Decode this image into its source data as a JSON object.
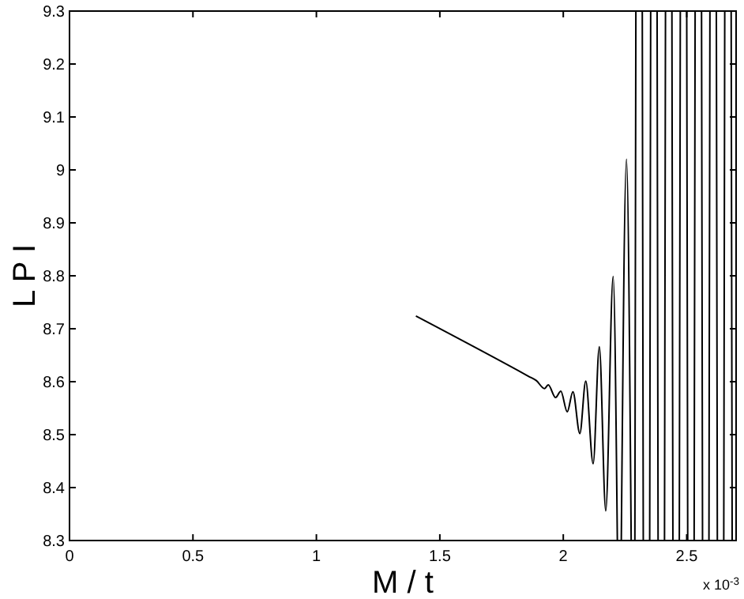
{
  "chart_data": {
    "type": "line",
    "xlabel": "M / t",
    "ylabel": "L P I",
    "annotations": [
      "x 10$^{-3}$"
    ],
    "xlim": [
      0,
      2.7
    ],
    "ylim": [
      8.3,
      9.3
    ],
    "xticks": [
      0,
      0.5,
      1,
      1.5,
      2,
      2.5
    ],
    "yticks": [
      8.3,
      8.4,
      8.5,
      8.6,
      8.7,
      8.8,
      8.9,
      9,
      9.1,
      9.2,
      9.3
    ],
    "grid": false,
    "line_style": "solid",
    "marker": "none",
    "series": [
      {
        "color": "#000000",
        "x": [
          1.403,
          1.86,
          1.891,
          1.924,
          1.939,
          1.969,
          1.99,
          2.016,
          2.039,
          2.067,
          2.091,
          2.121,
          2.146,
          2.172,
          2.202,
          2.219,
          2.225,
          2.235,
          2.256,
          2.275,
          2.28,
          2.29,
          2.294,
          2.297,
          2.32,
          2.324,
          2.327,
          2.35,
          2.354,
          2.357,
          2.38,
          2.384,
          2.387,
          2.41,
          2.414,
          2.417,
          2.44,
          2.444,
          2.447,
          2.47,
          2.474,
          2.477,
          2.5,
          2.504,
          2.507,
          2.53,
          2.534,
          2.537,
          2.56,
          2.564,
          2.567,
          2.59,
          2.594,
          2.597,
          2.62,
          2.624,
          2.627,
          2.65,
          2.654,
          2.657,
          2.68,
          2.684
        ],
        "values": [
          8.724,
          8.61,
          8.602,
          8.587,
          8.594,
          8.57,
          8.582,
          8.543,
          8.581,
          8.502,
          8.601,
          8.445,
          8.666,
          8.356,
          8.799,
          8.3,
          null,
          8.3,
          9.02,
          8.3,
          null,
          8.3,
          9.3,
          null,
          9.3,
          8.3,
          null,
          8.3,
          9.3,
          null,
          9.3,
          8.3,
          null,
          8.3,
          9.3,
          null,
          9.3,
          8.3,
          null,
          8.3,
          9.3,
          null,
          9.3,
          8.3,
          null,
          8.3,
          9.3,
          null,
          9.3,
          8.3,
          null,
          8.3,
          9.3,
          null,
          9.3,
          8.3,
          null,
          8.3,
          9.3,
          null,
          9.3,
          8.3
        ]
      }
    ]
  }
}
